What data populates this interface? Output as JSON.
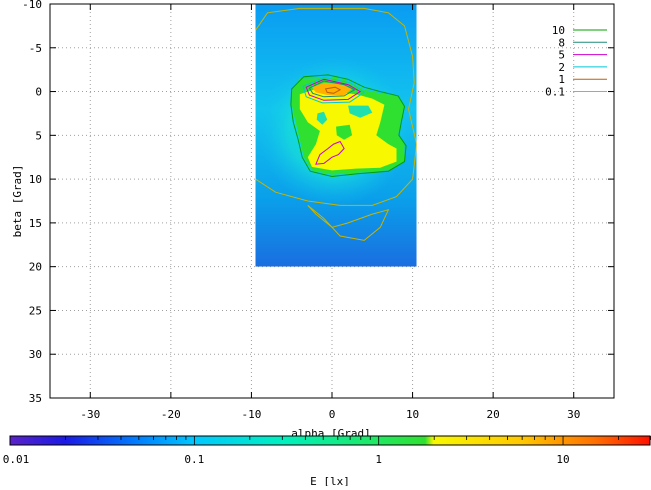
{
  "chart_data": {
    "type": "heatmap",
    "title": "",
    "xlabel": "alpha [Grad]",
    "ylabel": "beta [Grad]",
    "xlim": [
      -35,
      35
    ],
    "ylim": [
      -10,
      35
    ],
    "y_inverted": true,
    "x_ticks": [
      -30,
      -20,
      -10,
      0,
      10,
      20,
      30
    ],
    "y_ticks": [
      -10,
      -5,
      0,
      5,
      10,
      15,
      20,
      25,
      30,
      35
    ],
    "grid": true,
    "data_extent": {
      "x": [
        -9.5,
        10.5
      ],
      "y": [
        -10,
        20
      ]
    },
    "legend_position": "top-right",
    "contour_levels": [
      {
        "label": "10",
        "value": 10,
        "color": "#00a000"
      },
      {
        "label": "8",
        "value": 8,
        "color": "#1a8c7a"
      },
      {
        "label": "5",
        "value": 5,
        "color": "#cc00cc"
      },
      {
        "label": "2",
        "value": 2,
        "color": "#00c8d8"
      },
      {
        "label": "1",
        "value": 1,
        "color": "#c06000"
      },
      {
        "label": "0.1",
        "value": 0.1,
        "color": "#c8b400"
      }
    ],
    "colorbar": {
      "label": "E [lx]",
      "scale": "log",
      "range": [
        0.01,
        30
      ],
      "tick_labels": [
        {
          "text": "0.01",
          "value": 0.01
        },
        {
          "text": "0.1",
          "value": 0.1
        },
        {
          "text": "1",
          "value": 1
        },
        {
          "text": "10",
          "value": 10
        }
      ],
      "color_stops": [
        {
          "value": 0.01,
          "color": "#5a22c8"
        },
        {
          "value": 0.02,
          "color": "#1a1ae6"
        },
        {
          "value": 0.05,
          "color": "#0080ff"
        },
        {
          "value": 0.1,
          "color": "#00c8ff"
        },
        {
          "value": 0.3,
          "color": "#00f0c0"
        },
        {
          "value": 1,
          "color": "#20e860"
        },
        {
          "value": 1.8,
          "color": "#30e030"
        },
        {
          "value": 2,
          "color": "#f8f800"
        },
        {
          "value": 6,
          "color": "#ffc800"
        },
        {
          "value": 15,
          "color": "#ff7000"
        },
        {
          "value": 30,
          "color": "#ff1000"
        }
      ]
    }
  }
}
